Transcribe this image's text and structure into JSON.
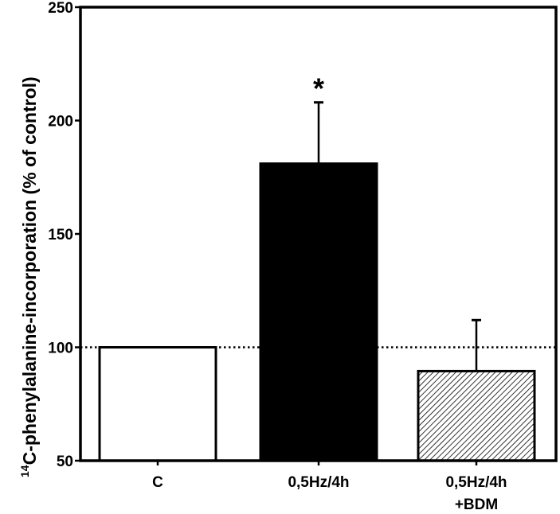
{
  "chart_data": {
    "type": "bar",
    "ylabel_sup": "14",
    "ylabel_main": "C-phenylalanine-incorporation (% of control)",
    "ylim": [
      50,
      250
    ],
    "yticks": [
      50,
      100,
      150,
      200,
      250
    ],
    "reference_line": 100,
    "grid": false,
    "categories": [
      {
        "lines": [
          "C"
        ],
        "value": 100,
        "error": 0,
        "fill": "white",
        "significance": ""
      },
      {
        "lines": [
          "0,5Hz/4h"
        ],
        "value": 181,
        "error": 27,
        "fill": "black",
        "significance": "*"
      },
      {
        "lines": [
          "0,5Hz/4h",
          "+BDM"
        ],
        "value": 89.5,
        "error": 22.5,
        "fill": "hatched",
        "significance": ""
      }
    ],
    "colors": {
      "axis": "#000000",
      "solid_bar": "#000000",
      "open_bar": "#ffffff"
    }
  }
}
